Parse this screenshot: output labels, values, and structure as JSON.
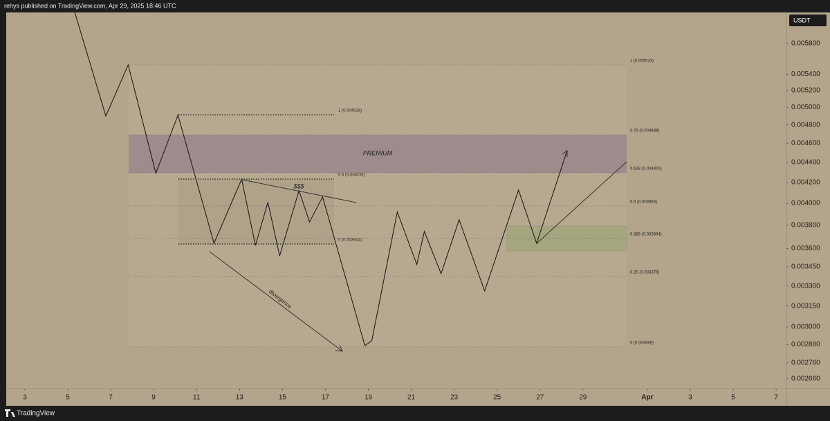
{
  "header": {
    "text": "rehys published on TradingView.com, Apr 29, 2025 18:46 UTC"
  },
  "footer": {
    "brand": "TradingView"
  },
  "currency": "USDT",
  "chart_data": {
    "type": "line",
    "color": "#1e1e1e",
    "log_scale": true,
    "grid": false,
    "x": [
      5.29,
      6.77,
      7.81,
      9.1,
      10.13,
      11.81,
      13.1,
      13.74,
      14.32,
      14.87,
      15.77,
      16.26,
      16.87,
      18.84,
      19.16,
      20.35,
      21.26,
      21.61,
      22.39,
      23.23,
      24.42,
      26.0,
      26.84,
      28.26
    ],
    "values": [
      0.00627,
      0.0049,
      0.00552,
      0.00429,
      0.00491,
      0.003645,
      0.00423,
      0.003627,
      0.00401,
      0.00354,
      0.00412,
      0.00383,
      0.00406,
      0.002873,
      0.002905,
      0.00392,
      0.00347,
      0.003746,
      0.003396,
      0.00385,
      0.003262,
      0.004125,
      0.003645,
      0.004521
    ],
    "xlim": [
      2.13,
      38.48
    ],
    "xticks": [
      3,
      5,
      7,
      9,
      11,
      13,
      15,
      17,
      19,
      21,
      23,
      25,
      27,
      29,
      {
        "value": 32,
        "label": "Apr"
      },
      {
        "value": 34,
        "label": "3"
      },
      {
        "value": 36,
        "label": "5"
      },
      {
        "value": 38,
        "label": "7"
      }
    ],
    "ylim": [
      0.0026,
      0.006235
    ],
    "yticks": [
      {
        "value": 0.0058,
        "label": "0.005800"
      },
      {
        "value": 0.0054,
        "label": "0.005400"
      },
      {
        "value": 0.0052,
        "label": "0.005200"
      },
      {
        "value": 0.005,
        "label": "0.005000"
      },
      {
        "value": 0.0048,
        "label": "0.004800"
      },
      {
        "value": 0.0046,
        "label": "0.004600"
      },
      {
        "value": 0.0044,
        "label": "0.004400"
      },
      {
        "value": 0.0042,
        "label": "0.004200"
      },
      {
        "value": 0.004,
        "label": "0.004000"
      },
      {
        "value": 0.0038,
        "label": "0.003800"
      },
      {
        "value": 0.0036,
        "label": "0.003600"
      },
      {
        "value": 0.00345,
        "label": "0.003450"
      },
      {
        "value": 0.0033,
        "label": "0.003300"
      },
      {
        "value": 0.00315,
        "label": "0.003150"
      },
      {
        "value": 0.003,
        "label": "0.003000"
      },
      {
        "value": 0.00288,
        "label": "0.002880"
      },
      {
        "value": 0.00276,
        "label": "0.002760"
      },
      {
        "value": 0.00266,
        "label": "0.002660"
      }
    ],
    "annotations": {
      "premium": "PREMIUM",
      "liquidity": "$$$",
      "divergence": "divergence",
      "fib_left": [
        "1 (0.004916)",
        "0.5 (0.004231)",
        "0 (0.003641)"
      ],
      "fib_right": [
        "1 (0.005523)",
        "0.75 (0.004689)",
        "0.618 (0.004300)",
        "0.5 (0.003980)",
        "0.386 (0.003694)",
        "0.25 (0.003379)",
        "0 (0.002869)"
      ]
    }
  }
}
